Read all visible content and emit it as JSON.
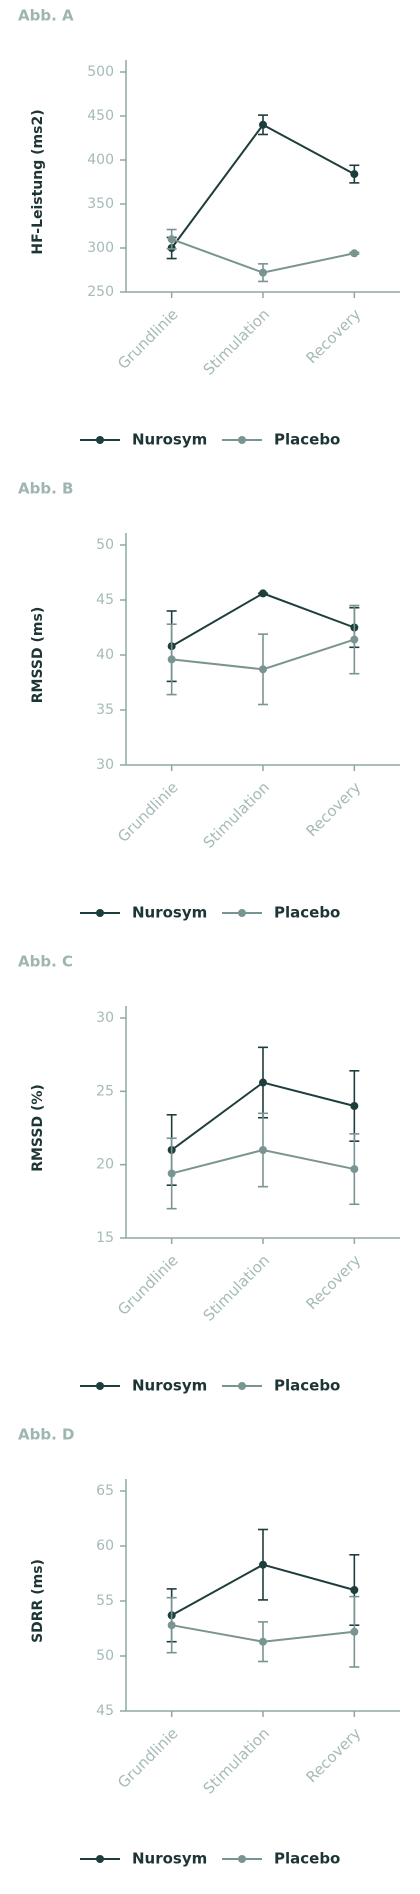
{
  "chart_data": [
    {
      "type": "line",
      "title": "Abb. A",
      "y_label": "HF-Leistung (ms2)",
      "categories": [
        "Grundlinie",
        "Stimulation",
        "Recovery"
      ],
      "ylim": [
        250,
        500
      ],
      "yticks": [
        250,
        300,
        350,
        400,
        450,
        500
      ],
      "series": [
        {
          "name": "Nurosym",
          "color": "#1e3d3d",
          "values": [
            300,
            440,
            384
          ],
          "errors": [
            12,
            11,
            10
          ]
        },
        {
          "name": "Placebo",
          "color": "#7a9492",
          "values": [
            310,
            272,
            294
          ],
          "errors": [
            11,
            10,
            1
          ]
        }
      ]
    },
    {
      "type": "line",
      "title": "Abb. B",
      "y_label": "RMSSD (ms)",
      "categories": [
        "Grundlinie",
        "Stimulation",
        "Recovery"
      ],
      "ylim": [
        30,
        50
      ],
      "yticks": [
        30,
        35,
        40,
        45,
        50
      ],
      "series": [
        {
          "name": "Nurosym",
          "color": "#1e3d3d",
          "values": [
            40.8,
            45.6,
            42.5
          ],
          "errors": [
            3.2,
            0,
            1.8
          ]
        },
        {
          "name": "Placebo",
          "color": "#7a9492",
          "values": [
            39.6,
            38.7,
            41.4
          ],
          "errors": [
            3.2,
            3.2,
            3.1
          ]
        }
      ]
    },
    {
      "type": "line",
      "title": "Abb. C",
      "y_label": "RMSSD (%)",
      "categories": [
        "Grundlinie",
        "Stimulation",
        "Recovery"
      ],
      "ylim": [
        15,
        30
      ],
      "yticks": [
        15,
        20,
        25,
        30
      ],
      "series": [
        {
          "name": "Nurosym",
          "color": "#1e3d3d",
          "values": [
            21,
            25.6,
            24
          ],
          "errors": [
            2.4,
            2.4,
            2.4
          ]
        },
        {
          "name": "Placebo",
          "color": "#7a9492",
          "values": [
            19.4,
            21,
            19.7
          ],
          "errors": [
            2.4,
            2.5,
            2.4
          ]
        }
      ]
    },
    {
      "type": "line",
      "title": "Abb. D",
      "y_label": "SDRR (ms)",
      "categories": [
        "Grundlinie",
        "Stimulation",
        "Recovery"
      ],
      "ylim": [
        45,
        65
      ],
      "yticks": [
        45,
        50,
        55,
        60,
        65
      ],
      "series": [
        {
          "name": "Nurosym",
          "color": "#1e3d3d",
          "values": [
            53.7,
            58.3,
            56
          ],
          "errors": [
            2.4,
            3.2,
            3.2
          ]
        },
        {
          "name": "Placebo",
          "color": "#7a9492",
          "values": [
            52.8,
            51.3,
            52.2
          ],
          "errors": [
            2.5,
            1.8,
            3.2
          ]
        }
      ]
    }
  ]
}
